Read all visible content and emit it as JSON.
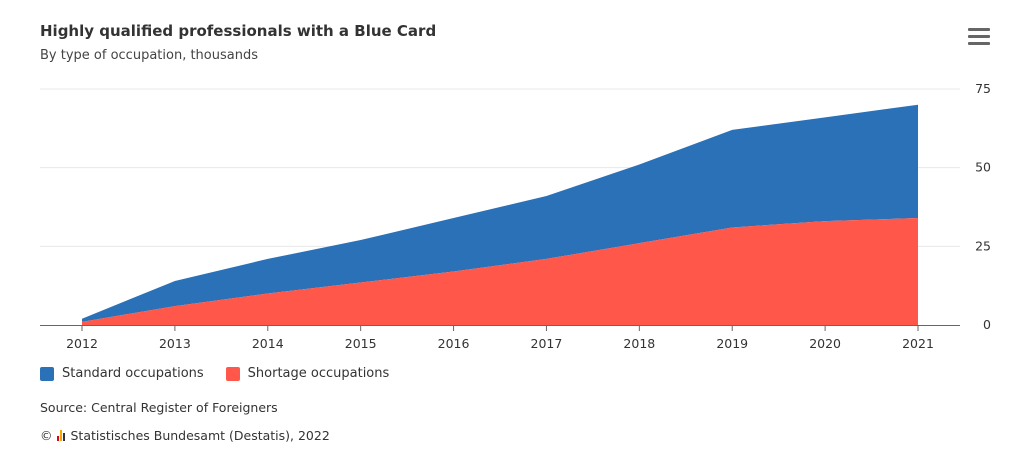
{
  "header": {
    "title": "Highly qualified professionals with a Blue Card",
    "subtitle": "By type of occupation, thousands"
  },
  "menu": {
    "icon": "hamburger-menu-icon"
  },
  "footer": {
    "source": "Source: Central Register of Foreigners",
    "copyright_symbol": "©",
    "copyright_text": "Statistisches Bundesamt (Destatis), 2022",
    "logo_icon": "destatis-logo-icon"
  },
  "colors": {
    "standard": "#2a71b8",
    "shortage": "#ff584a",
    "grid": "#e8e8e8",
    "axis": "#666666"
  },
  "chart_data": {
    "type": "area",
    "stacked": true,
    "title": "Highly qualified professionals with a Blue Card",
    "subtitle": "By type of occupation, thousands",
    "xlabel": "",
    "ylabel": "",
    "categories": [
      "2012",
      "2013",
      "2014",
      "2015",
      "2016",
      "2017",
      "2018",
      "2019",
      "2020",
      "2021"
    ],
    "series": [
      {
        "name": "Shortage occupations",
        "values": [
          1,
          6,
          10,
          13.5,
          17,
          21,
          26,
          31,
          33,
          34
        ]
      },
      {
        "name": "Standard occupations",
        "values": [
          1,
          8,
          11,
          13.5,
          17,
          20,
          25,
          31,
          33,
          36
        ]
      }
    ],
    "ylim": [
      0,
      75
    ],
    "yticks": [
      0,
      25,
      50,
      75
    ],
    "y_axis_side": "right",
    "grid": true,
    "legend": {
      "position": "bottom-left",
      "entries": [
        "Standard occupations",
        "Shortage occupations"
      ]
    }
  }
}
